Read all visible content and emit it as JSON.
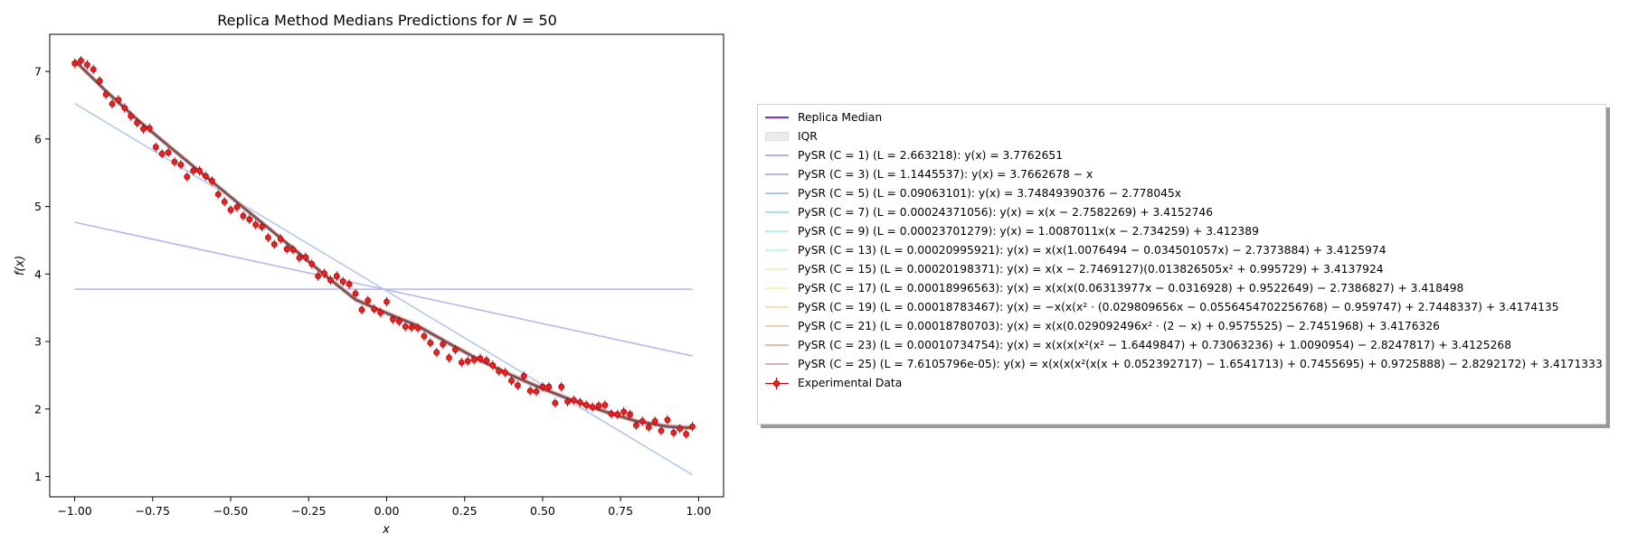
{
  "chart_data": {
    "type": "line",
    "title": "Replica Method Medians Predictions for N = 50",
    "xlabel": "x",
    "ylabel": "f(x)",
    "xlim": [
      -1.08,
      1.08
    ],
    "ylim": [
      0.7,
      7.55
    ],
    "xticks": [
      "−1.00",
      "−0.75",
      "−0.50",
      "−0.25",
      "0.00",
      "0.25",
      "0.50",
      "0.75",
      "1.00"
    ],
    "yticks": [
      "1",
      "2",
      "3",
      "4",
      "5",
      "6",
      "7"
    ],
    "grid": false,
    "legend_placement": "outside right",
    "series": [
      {
        "name": "Replica Median",
        "color": "#7d2fe0",
        "x": [
          -1.0,
          -0.9,
          -0.8,
          -0.7,
          -0.6,
          -0.5,
          -0.4,
          -0.3,
          -0.2,
          -0.1,
          0.0,
          0.1,
          0.2,
          0.3,
          0.4,
          0.5,
          0.6,
          0.7,
          0.8,
          0.9,
          0.98
        ],
        "y": [
          7.16,
          6.71,
          6.29,
          5.9,
          5.52,
          5.14,
          4.76,
          4.38,
          3.99,
          3.62,
          3.42,
          3.23,
          2.97,
          2.72,
          2.5,
          2.3,
          2.12,
          1.96,
          1.82,
          1.74,
          1.72
        ]
      },
      {
        "name": "IQR",
        "color": "#ebebeb"
      },
      {
        "name": "PySR (C = 1) (L = 2.663218): y(x) = 3.7762651",
        "color": "#b7b2f1",
        "intercept": 3.7762651,
        "slope": 0
      },
      {
        "name": "PySR (C = 3) (L = 1.1445537): y(x) = 3.7662678 − x",
        "color": "#b2b3f5",
        "intercept": 3.7662678,
        "slope": -1
      },
      {
        "name": "PySR (C = 5) (L = 0.09063101): y(x) = 3.74849390376 − 2.778045x",
        "color": "#aec6f6",
        "intercept": 3.74849390376,
        "slope": -2.778045
      },
      {
        "name": "PySR (C = 7) (L = 0.00024371056): y(x) = x(x − 2.7582269) + 3.4152746",
        "color": "#a7e3ee"
      },
      {
        "name": "PySR (C = 9) (L = 0.00023701279): y(x) = 1.0087011x(x − 2.734259) + 3.412389",
        "color": "#b6f3f3"
      },
      {
        "name": "PySR (C = 13) (L = 0.00020995921): y(x) = x(x(1.0076494 − 0.034501057x) − 2.7373884) + 3.4125974",
        "color": "#c8f5ea"
      },
      {
        "name": "PySR (C = 15) (L = 0.00020198371): y(x) = x(x − 2.7469127)(0.013826505x² + 0.995729) + 3.4137924",
        "color": "#e5f8c6"
      },
      {
        "name": "PySR (C = 17) (L = 0.00018996563): y(x) = x(x(x(0.06313977x − 0.0316928) + 0.9522649) − 2.7386827) + 3.418498",
        "color": "#f6f6b9"
      },
      {
        "name": "PySR (C = 19) (L = 0.00018783467): y(x) = −x(x(x² · (0.029809656x − 0.0556454702256768) − 0.959747) + 2.7448337) + 3.4174135",
        "color": "#f7e0b3"
      },
      {
        "name": "PySR (C = 21) (L = 0.00018780703): y(x) = x(x(0.029092496x² · (2 − x) + 0.9575525) − 2.7451968) + 3.4176326",
        "color": "#f6cda8"
      },
      {
        "name": "PySR (C = 23) (L = 0.00010734754): y(x) = x(x(x(x²(x² − 1.6449847) + 0.73063236) + 1.0090954) − 2.8247817) + 3.4125268",
        "color": "#f2b8ae"
      },
      {
        "name": "PySR (C = 25) (L = 7.6105796e-05): y(x) = x(x(x(x²(x(x + 0.052392717) − 1.6541713) + 0.7455695) + 0.9725888) − 2.8292172) + 3.4171333",
        "color": "#dfb0ad"
      },
      {
        "name": "Experimental Data",
        "color": "#ff1a1a",
        "x": [
          -1.0,
          -0.98,
          -0.96,
          -0.94,
          -0.92,
          -0.9,
          -0.88,
          -0.86,
          -0.84,
          -0.82,
          -0.8,
          -0.78,
          -0.76,
          -0.74,
          -0.72,
          -0.7,
          -0.68,
          -0.66,
          -0.64,
          -0.62,
          -0.6,
          -0.58,
          -0.56,
          -0.54,
          -0.52,
          -0.5,
          -0.48,
          -0.46,
          -0.44,
          -0.42,
          -0.4,
          -0.38,
          -0.36,
          -0.34,
          -0.32,
          -0.3,
          -0.28,
          -0.26,
          -0.24,
          -0.22,
          -0.2,
          -0.18,
          -0.16,
          -0.14,
          -0.12,
          -0.1,
          -0.08,
          -0.06,
          -0.04,
          -0.02,
          0.0,
          0.02,
          0.04,
          0.06,
          0.08,
          0.1,
          0.12,
          0.14,
          0.16,
          0.18,
          0.2,
          0.22,
          0.24,
          0.26,
          0.28,
          0.3,
          0.32,
          0.34,
          0.36,
          0.38,
          0.4,
          0.42,
          0.44,
          0.46,
          0.48,
          0.5,
          0.52,
          0.54,
          0.56,
          0.58,
          0.6,
          0.62,
          0.64,
          0.66,
          0.68,
          0.7,
          0.72,
          0.74,
          0.76,
          0.78,
          0.8,
          0.82,
          0.84,
          0.86,
          0.88,
          0.9,
          0.92,
          0.94,
          0.96,
          0.98
        ],
        "y": [
          7.12,
          7.16,
          7.1,
          7.03,
          6.86,
          6.66,
          6.52,
          6.58,
          6.46,
          6.34,
          6.24,
          6.15,
          6.16,
          5.88,
          5.78,
          5.8,
          5.66,
          5.62,
          5.44,
          5.53,
          5.53,
          5.45,
          5.38,
          5.18,
          5.07,
          4.95,
          4.99,
          4.86,
          4.81,
          4.73,
          4.7,
          4.54,
          4.44,
          4.52,
          4.37,
          4.36,
          4.24,
          4.25,
          4.15,
          3.97,
          4.01,
          3.91,
          3.97,
          3.89,
          3.85,
          3.71,
          3.47,
          3.61,
          3.48,
          3.43,
          3.59,
          3.33,
          3.3,
          3.22,
          3.21,
          3.2,
          3.08,
          2.98,
          2.84,
          2.96,
          2.76,
          2.88,
          2.69,
          2.71,
          2.73,
          2.75,
          2.72,
          2.65,
          2.56,
          2.54,
          2.42,
          2.35,
          2.49,
          2.27,
          2.26,
          2.33,
          2.33,
          2.09,
          2.33,
          2.11,
          2.13,
          2.1,
          2.06,
          2.03,
          2.05,
          2.06,
          1.93,
          1.92,
          1.96,
          1.92,
          1.76,
          1.82,
          1.73,
          1.82,
          1.68,
          1.84,
          1.65,
          1.71,
          1.63,
          1.74
        ],
        "yerr": 0.07
      }
    ]
  },
  "title": {
    "prefix": "Replica Method Medians Predictions for ",
    "var": "N",
    "suffix": " = 50"
  },
  "axes": {
    "xlabel": "x",
    "ylabel": "f(x)"
  },
  "legend": [
    {
      "label": "Replica Median",
      "kind": "line",
      "color": "#7d2fe0"
    },
    {
      "label": "IQR",
      "kind": "patch",
      "color": "#ebebeb"
    },
    {
      "label": "PySR (C = 1) (L = 2.663218): y(x) = 3.7762651",
      "kind": "line",
      "color": "#b7b2f1"
    },
    {
      "label": "PySR (C = 3) (L = 1.1445537): y(x) = 3.7662678 − x",
      "kind": "line",
      "color": "#b2b3f5"
    },
    {
      "label": "PySR (C = 5) (L = 0.09063101): y(x) = 3.74849390376 − 2.778045x",
      "kind": "line",
      "color": "#aec6f6"
    },
    {
      "label": "PySR (C = 7) (L = 0.00024371056): y(x) = x(x − 2.7582269) + 3.4152746",
      "kind": "line",
      "color": "#a7e3ee"
    },
    {
      "label": "PySR (C = 9) (L = 0.00023701279): y(x) = 1.0087011x(x − 2.734259) + 3.412389",
      "kind": "line",
      "color": "#b6f3f3"
    },
    {
      "label": "PySR (C = 13) (L = 0.00020995921): y(x) = x(x(1.0076494 − 0.034501057x) − 2.7373884) + 3.4125974",
      "kind": "line",
      "color": "#c8f5ea"
    },
    {
      "label": "PySR (C = 15) (L = 0.00020198371): y(x) = x(x − 2.7469127)(0.013826505x² + 0.995729) + 3.4137924",
      "kind": "line",
      "color": "#e5f8c6"
    },
    {
      "label": "PySR (C = 17) (L = 0.00018996563): y(x) = x(x(x(0.06313977x − 0.0316928) + 0.9522649) − 2.7386827) + 3.418498",
      "kind": "line",
      "color": "#f6f6b9"
    },
    {
      "label": "PySR (C = 19) (L = 0.00018783467): y(x) = −x(x(x² · (0.029809656x − 0.0556454702256768) − 0.959747) + 2.7448337) + 3.4174135",
      "kind": "line",
      "color": "#f7e0b3"
    },
    {
      "label": "PySR (C = 21) (L = 0.00018780703): y(x) = x(x(0.029092496x² · (2 − x) + 0.9575525) − 2.7451968) + 3.4176326",
      "kind": "line",
      "color": "#f6cda8"
    },
    {
      "label": "PySR (C = 23) (L = 0.00010734754): y(x) = x(x(x(x²(x² − 1.6449847) + 0.73063236) + 1.0090954) − 2.8247817) + 3.4125268",
      "kind": "line",
      "color": "#f2b8ae"
    },
    {
      "label": "PySR (C = 25) (L = 7.6105796e-05): y(x) = x(x(x(x²(x(x + 0.052392717) − 1.6541713) + 0.7455695) + 0.9725888) − 2.8292172) + 3.4171333",
      "kind": "line",
      "color": "#dfb0ad"
    },
    {
      "label": "Experimental Data",
      "kind": "errorbar",
      "color": "#ff1a1a"
    }
  ]
}
